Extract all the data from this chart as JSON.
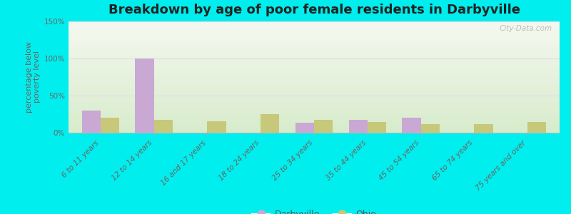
{
  "title": "Breakdown by age of poor female residents in Darbyville",
  "categories": [
    "6 to 11 years",
    "12 to 14 years",
    "16 and 17 years",
    "18 to 24 years",
    "25 to 34 years",
    "35 to 44 years",
    "45 to 54 years",
    "65 to 74 years",
    "75 years and over"
  ],
  "darbyville": [
    30,
    100,
    0,
    0,
    13,
    17,
    20,
    0,
    0
  ],
  "ohio": [
    20,
    17,
    15,
    25,
    17,
    14,
    12,
    12,
    14
  ],
  "darbyville_color": "#c9a8d4",
  "ohio_color": "#c8c87a",
  "bg_figure": "#00eeee",
  "bg_axes_top": "#f5f8f0",
  "bg_axes_bottom": "#d8eccc",
  "ylabel": "percentage below\npoverty level",
  "ylim": [
    0,
    150
  ],
  "yticks": [
    0,
    50,
    100,
    150
  ],
  "ytick_labels": [
    "0%",
    "50%",
    "100%",
    "150%"
  ],
  "bar_width": 0.35,
  "title_fontsize": 13,
  "axis_label_fontsize": 8,
  "tick_fontsize": 7.5,
  "legend_darbyville": "Darbyville",
  "legend_ohio": "Ohio",
  "grid_color": "#e0dce8",
  "watermark": "City-Data.com"
}
